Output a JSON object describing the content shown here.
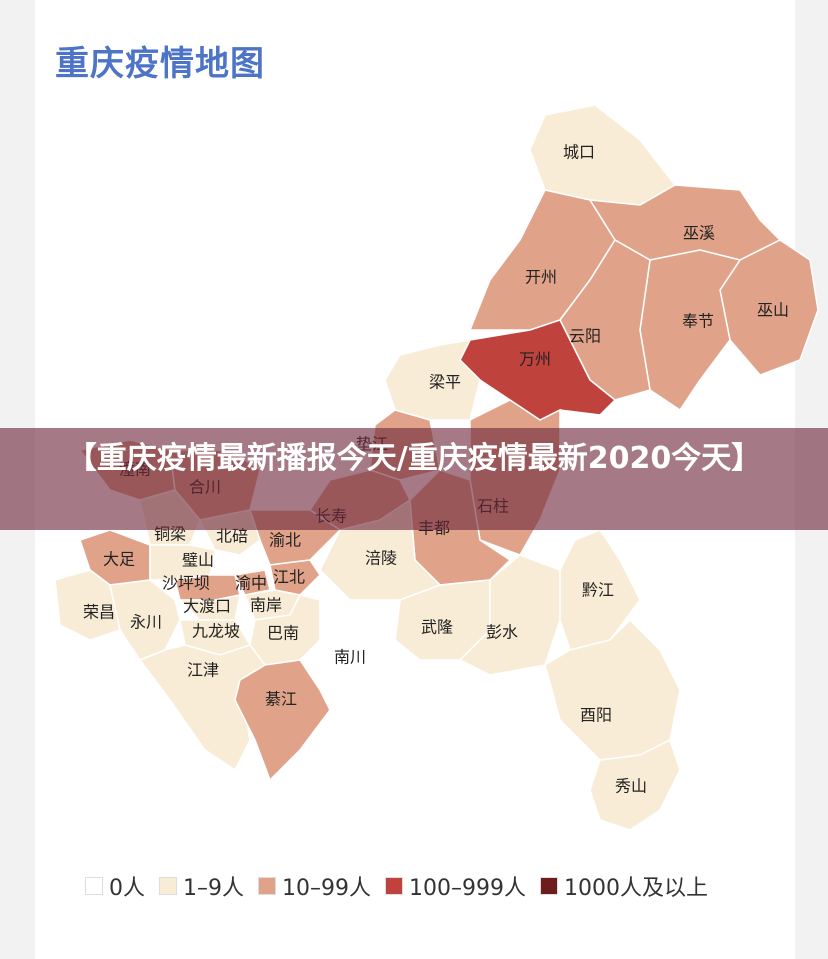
{
  "title": "重庆疫情地图",
  "banner": "【重庆疫情最新播报今天/重庆疫情最新2020今天】",
  "legend": [
    {
      "label": "0人",
      "color": "#ffffff"
    },
    {
      "label": "1–9人",
      "color": "#f8ecd6"
    },
    {
      "label": "10–99人",
      "color": "#e0a389"
    },
    {
      "label": "100–999人",
      "color": "#c0423d"
    },
    {
      "label": "1000人及以上",
      "color": "#6e1d1d"
    }
  ],
  "regions": [
    {
      "label": "城口",
      "level": 1
    },
    {
      "label": "开州",
      "level": 2
    },
    {
      "label": "巫溪",
      "level": 2
    },
    {
      "label": "巫山",
      "level": 2
    },
    {
      "label": "奉节",
      "level": 2
    },
    {
      "label": "云阳",
      "level": 2
    },
    {
      "label": "万州",
      "level": 3
    },
    {
      "label": "梁平",
      "level": 1
    },
    {
      "label": "垫江",
      "level": 2
    },
    {
      "label": "石柱",
      "level": 2
    },
    {
      "label": "丰都",
      "level": 2
    },
    {
      "label": "长寿",
      "level": 2
    },
    {
      "label": "潼南",
      "level": 2
    },
    {
      "label": "合川",
      "level": 2
    },
    {
      "label": "铜梁",
      "level": 1
    },
    {
      "label": "北碚",
      "level": 1
    },
    {
      "label": "渝北",
      "level": 2
    },
    {
      "label": "涪陵",
      "level": 1
    },
    {
      "label": "大足",
      "level": 2
    },
    {
      "label": "璧山",
      "level": 1
    },
    {
      "label": "江北",
      "level": 2
    },
    {
      "label": "渝中",
      "level": 2
    },
    {
      "label": "沙坪坝",
      "level": 2
    },
    {
      "label": "大渡口",
      "level": 1
    },
    {
      "label": "南岸",
      "level": 1
    },
    {
      "label": "荣昌",
      "level": 1
    },
    {
      "label": "永川",
      "level": 1
    },
    {
      "label": "九龙坡",
      "level": 1
    },
    {
      "label": "巴南",
      "level": 1
    },
    {
      "label": "武隆",
      "level": 1
    },
    {
      "label": "彭水",
      "level": 1
    },
    {
      "label": "黔江",
      "level": 1
    },
    {
      "label": "南川",
      "level": 0
    },
    {
      "label": "江津",
      "level": 1
    },
    {
      "label": "綦江",
      "level": 2
    },
    {
      "label": "酉阳",
      "level": 1
    },
    {
      "label": "秀山",
      "level": 1
    }
  ]
}
